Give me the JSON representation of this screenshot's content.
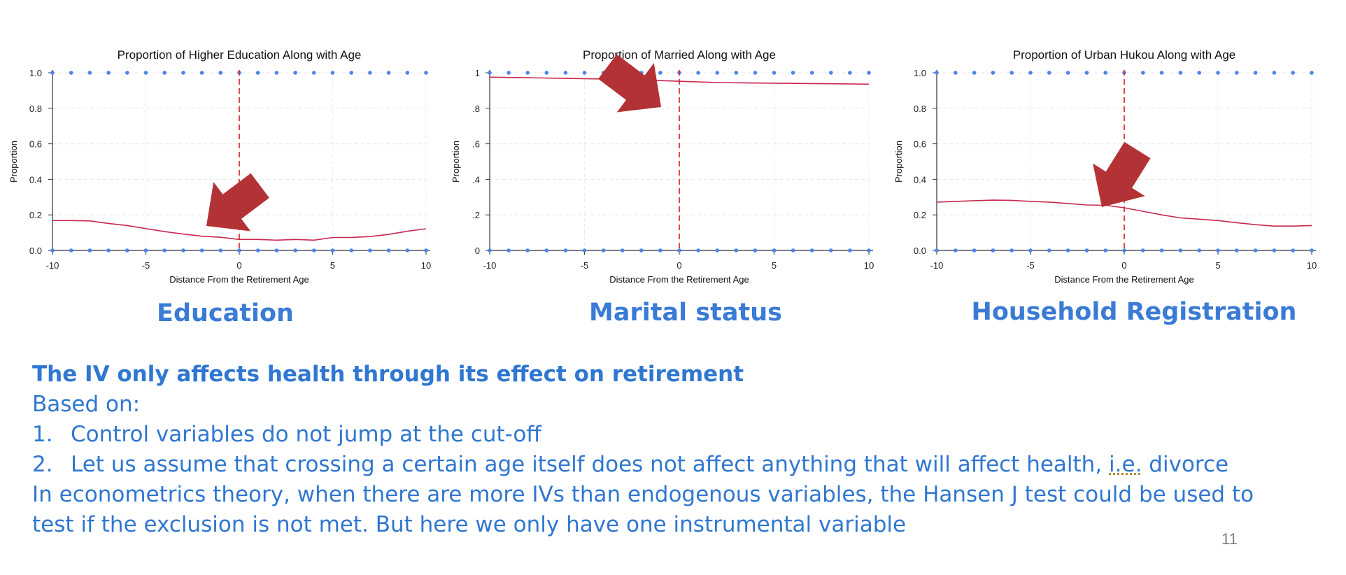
{
  "chart_data": [
    {
      "type": "line",
      "title": "Proportion of Higher Education Along with Age",
      "xlabel": "Distance From the Retirement Age",
      "ylabel": "Proportion",
      "xlim": [
        -10,
        10
      ],
      "ylim": [
        0,
        1
      ],
      "xticks": [
        "-10",
        "-5",
        "0",
        "5",
        "10"
      ],
      "yticks": [
        "0.0",
        "0.2",
        "0.4",
        "0.6",
        "0.8",
        "1.0"
      ],
      "cutoff_x": 0,
      "series": [
        {
          "color": "#c8284f",
          "x": [
            -10,
            -9,
            -8,
            -7,
            -6,
            -5,
            -4,
            -3,
            -2,
            -1,
            0,
            1,
            2,
            3,
            4,
            5,
            6,
            7,
            8,
            9,
            10
          ],
          "y": [
            0.168,
            0.168,
            0.166,
            0.152,
            0.14,
            0.123,
            0.106,
            0.092,
            0.08,
            0.074,
            0.062,
            0.062,
            0.058,
            0.062,
            0.058,
            0.073,
            0.073,
            0.078,
            0.09,
            0.108,
            0.122
          ]
        }
      ],
      "scatter_points_color": "#4a86e8",
      "scatter_y_levels": [
        0,
        1
      ],
      "annotation": "arrow pointing to cut-off"
    },
    {
      "type": "line",
      "title": "Proportion of Married Along with Age",
      "xlabel": "Distance From the Retirement Age",
      "ylabel": "Proportion",
      "xlim": [
        -10,
        10
      ],
      "ylim": [
        0,
        1
      ],
      "xticks": [
        "-10",
        "-5",
        "0",
        "5",
        "10"
      ],
      "yticks": [
        "0",
        ".2",
        ".4",
        ".6",
        ".8",
        "1"
      ],
      "cutoff_x": 0,
      "series": [
        {
          "color": "#c8284f",
          "x": [
            -10,
            -8,
            -6,
            -4,
            -2,
            0,
            2,
            4,
            6,
            8,
            10
          ],
          "y": [
            0.975,
            0.972,
            0.968,
            0.965,
            0.96,
            0.952,
            0.945,
            0.942,
            0.94,
            0.938,
            0.936
          ]
        }
      ],
      "scatter_points_color": "#4a86e8",
      "scatter_y_levels": [
        0,
        1
      ],
      "annotation": "arrow pointing to cut-off"
    },
    {
      "type": "line",
      "title": "Proportion of Urban Hukou Along with Age",
      "xlabel": "Distance From the Retirement Age",
      "ylabel": "Proportion",
      "xlim": [
        -10,
        10
      ],
      "ylim": [
        0,
        1
      ],
      "xticks": [
        "-10",
        "-5",
        "0",
        "5",
        "10"
      ],
      "yticks": [
        "0.0",
        "0.2",
        "0.4",
        "0.6",
        "0.8",
        "1.0"
      ],
      "cutoff_x": 0,
      "series": [
        {
          "color": "#c8284f",
          "x": [
            -10,
            -9,
            -8,
            -7,
            -6,
            -5,
            -4,
            -3,
            -2,
            -1,
            0,
            1,
            2,
            3,
            4,
            5,
            6,
            7,
            8,
            9,
            10
          ],
          "y": [
            0.272,
            0.276,
            0.28,
            0.283,
            0.282,
            0.276,
            0.272,
            0.264,
            0.256,
            0.254,
            0.24,
            0.22,
            0.2,
            0.183,
            0.176,
            0.168,
            0.156,
            0.145,
            0.137,
            0.137,
            0.14
          ]
        }
      ],
      "scatter_points_color": "#4a86e8",
      "scatter_y_levels": [
        0,
        1
      ],
      "annotation": "arrow pointing to cut-off"
    }
  ],
  "captions": [
    "Education",
    "Marital status",
    "Household Registration"
  ],
  "text": {
    "headline": "The IV only affects health through its effect on retirement",
    "based_on": "Based on:",
    "items": [
      {
        "num": "1.",
        "text": "Control variables do not jump at the cut-off"
      },
      {
        "num": "2.",
        "text_before": "Let us assume that crossing a certain age itself does not affect anything that will affect health, ",
        "ie": "i.e.",
        "text_after": " divorce"
      }
    ],
    "paragraph_line1": "In econometrics theory, when there are more IVs than endogenous variables, the Hansen J test could be used to",
    "paragraph_line2": "test if the exclusion is not met. But here we only have one instrumental variable"
  },
  "page_number": "11",
  "colors": {
    "caption_blue": "#3a7bd5",
    "text_blue": "#2f77d0",
    "arrow_red": "#b33235",
    "cutoff_red": "#e0303a",
    "line_red": "#c8284f",
    "dot_blue": "#4a86e8"
  }
}
